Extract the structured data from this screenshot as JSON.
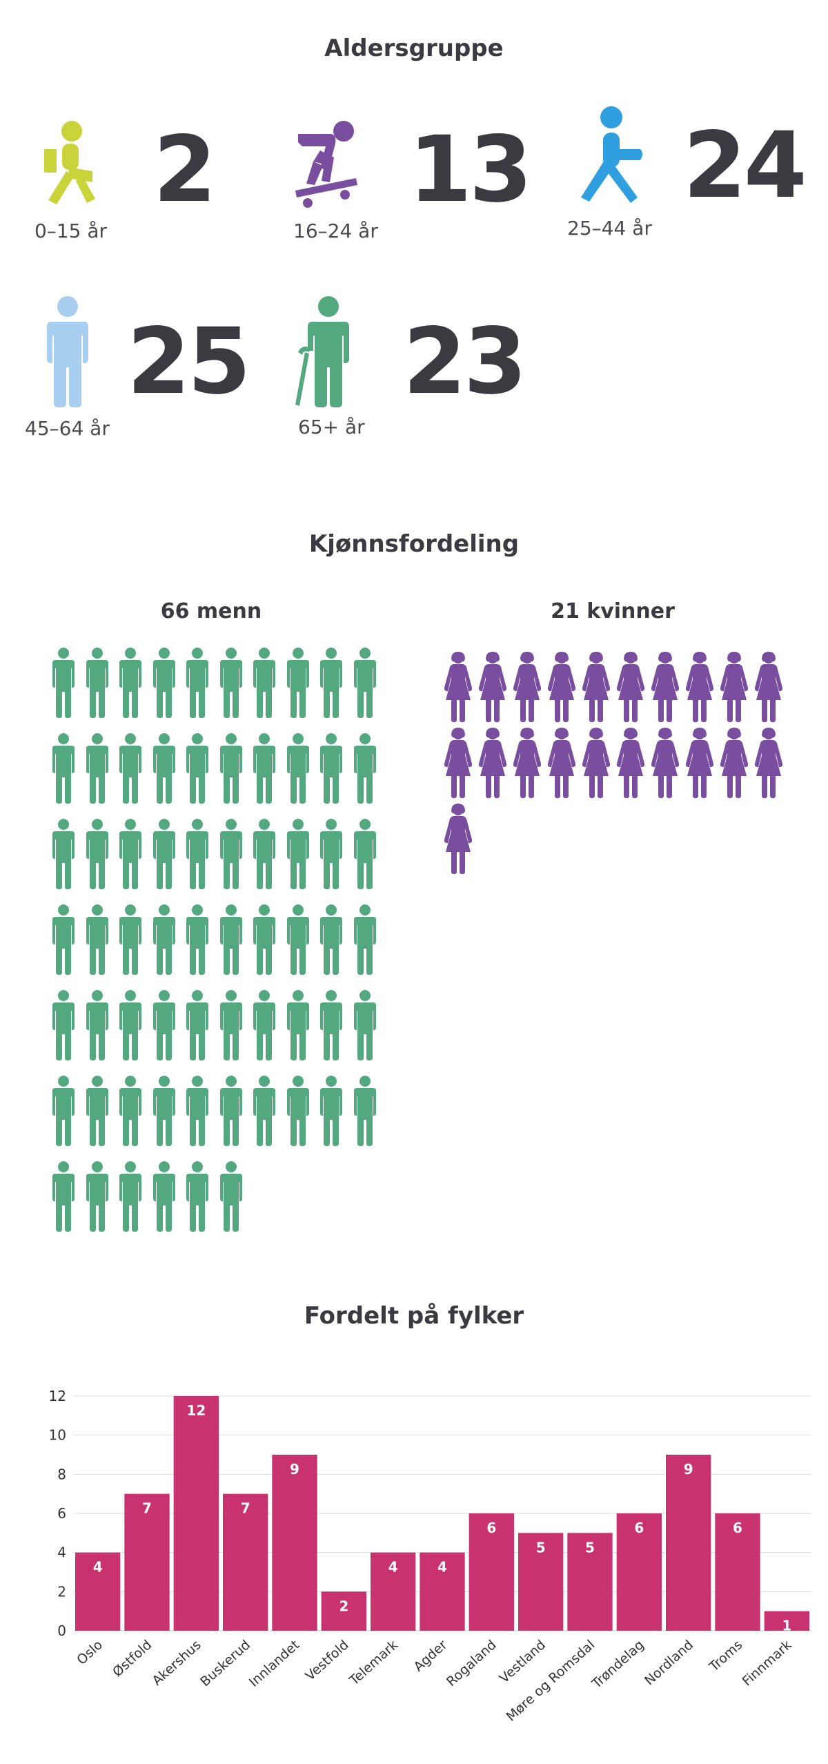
{
  "age": {
    "title": "Aldersgruppe",
    "groups": [
      {
        "label": "0–15 år",
        "count": "2",
        "color": "#c9d43a",
        "icon": "child-reading-icon"
      },
      {
        "label": "16–24 år",
        "count": "13",
        "color": "#7a4e9e",
        "icon": "skateboarder-icon"
      },
      {
        "label": "25–44 år",
        "count": "24",
        "color": "#2f9fdf",
        "icon": "walking-person-icon"
      },
      {
        "label": "45–64 år",
        "count": "25",
        "color": "#a9cff0",
        "icon": "standing-person-icon"
      },
      {
        "label": "65+ år",
        "count": "23",
        "color": "#53a880",
        "icon": "elderly-cane-icon"
      }
    ]
  },
  "gender": {
    "title": "Kjønnsfordeling",
    "men": {
      "label": "66 menn",
      "count": 66,
      "color": "#53a880",
      "icon": "man-icon"
    },
    "women": {
      "label": "21 kvinner",
      "count": 21,
      "color": "#7a4e9e",
      "icon": "woman-icon"
    }
  },
  "chart_data": {
    "type": "bar",
    "title": "Fordelt på fylker",
    "categories": [
      "Oslo",
      "Østfold",
      "Akershus",
      "Buskerud",
      "Innlandet",
      "Vestfold",
      "Telemark",
      "Agder",
      "Rogaland",
      "Vestland",
      "Møre og Romsdal",
      "Trøndelag",
      "Nordland",
      "Troms",
      "Finnmark"
    ],
    "values": [
      4,
      7,
      12,
      7,
      9,
      2,
      4,
      4,
      6,
      5,
      5,
      6,
      9,
      6,
      1
    ],
    "ylim": [
      0,
      12
    ],
    "yticks": [
      0,
      2,
      4,
      6,
      8,
      10,
      12
    ],
    "bar_color": "#c8326e",
    "grid": true,
    "data_labels": true,
    "xlabel": "",
    "ylabel": ""
  }
}
